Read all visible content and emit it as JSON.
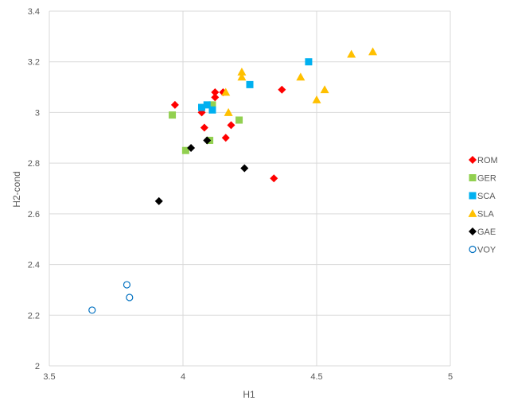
{
  "chart_data": {
    "type": "scatter",
    "title": "",
    "xlabel": "H1",
    "ylabel": "H2-cond",
    "xlim": [
      3.5,
      5
    ],
    "ylim": [
      2,
      3.4
    ],
    "x_ticks": [
      "3.5",
      "4",
      "4.5",
      "5"
    ],
    "y_ticks": [
      "2",
      "2.2",
      "2.4",
      "2.6",
      "2.8",
      "3",
      "3.2",
      "3.4"
    ],
    "x_tick_values": [
      3.5,
      4,
      4.5,
      5
    ],
    "y_tick_values": [
      2,
      2.2,
      2.4,
      2.6,
      2.8,
      3,
      3.2,
      3.4
    ],
    "grid": true,
    "legend_position": "right",
    "series": [
      {
        "name": "ROM",
        "marker": "diamond",
        "color": "#ff0000",
        "points": [
          [
            3.97,
            3.03
          ],
          [
            4.07,
            3.0
          ],
          [
            4.08,
            2.94
          ],
          [
            4.12,
            3.08
          ],
          [
            4.12,
            3.06
          ],
          [
            4.15,
            3.08
          ],
          [
            4.16,
            2.9
          ],
          [
            4.18,
            2.95
          ],
          [
            4.34,
            2.74
          ],
          [
            4.37,
            3.09
          ]
        ]
      },
      {
        "name": "GER",
        "marker": "square",
        "color": "#92d050",
        "points": [
          [
            3.96,
            2.99
          ],
          [
            4.01,
            2.85
          ],
          [
            4.1,
            2.89
          ],
          [
            4.11,
            3.03
          ],
          [
            4.21,
            2.97
          ]
        ]
      },
      {
        "name": "SCA",
        "marker": "square",
        "color": "#00b0f0",
        "points": [
          [
            4.07,
            3.02
          ],
          [
            4.09,
            3.03
          ],
          [
            4.11,
            3.01
          ],
          [
            4.25,
            3.11
          ],
          [
            4.47,
            3.2
          ]
        ]
      },
      {
        "name": "SLA",
        "marker": "triangle",
        "color": "#ffc000",
        "points": [
          [
            4.16,
            3.08
          ],
          [
            4.17,
            3.0
          ],
          [
            4.22,
            3.14
          ],
          [
            4.22,
            3.16
          ],
          [
            4.44,
            3.14
          ],
          [
            4.5,
            3.05
          ],
          [
            4.53,
            3.09
          ],
          [
            4.63,
            3.23
          ],
          [
            4.71,
            3.24
          ]
        ]
      },
      {
        "name": "GAE",
        "marker": "diamond",
        "color": "#000000",
        "points": [
          [
            3.91,
            2.65
          ],
          [
            4.03,
            2.86
          ],
          [
            4.09,
            2.89
          ],
          [
            4.23,
            2.78
          ]
        ]
      },
      {
        "name": "VOY",
        "marker": "circle-open",
        "color": "#0070c0",
        "points": [
          [
            3.66,
            2.22
          ],
          [
            3.79,
            2.32
          ],
          [
            3.8,
            2.27
          ]
        ]
      }
    ]
  }
}
